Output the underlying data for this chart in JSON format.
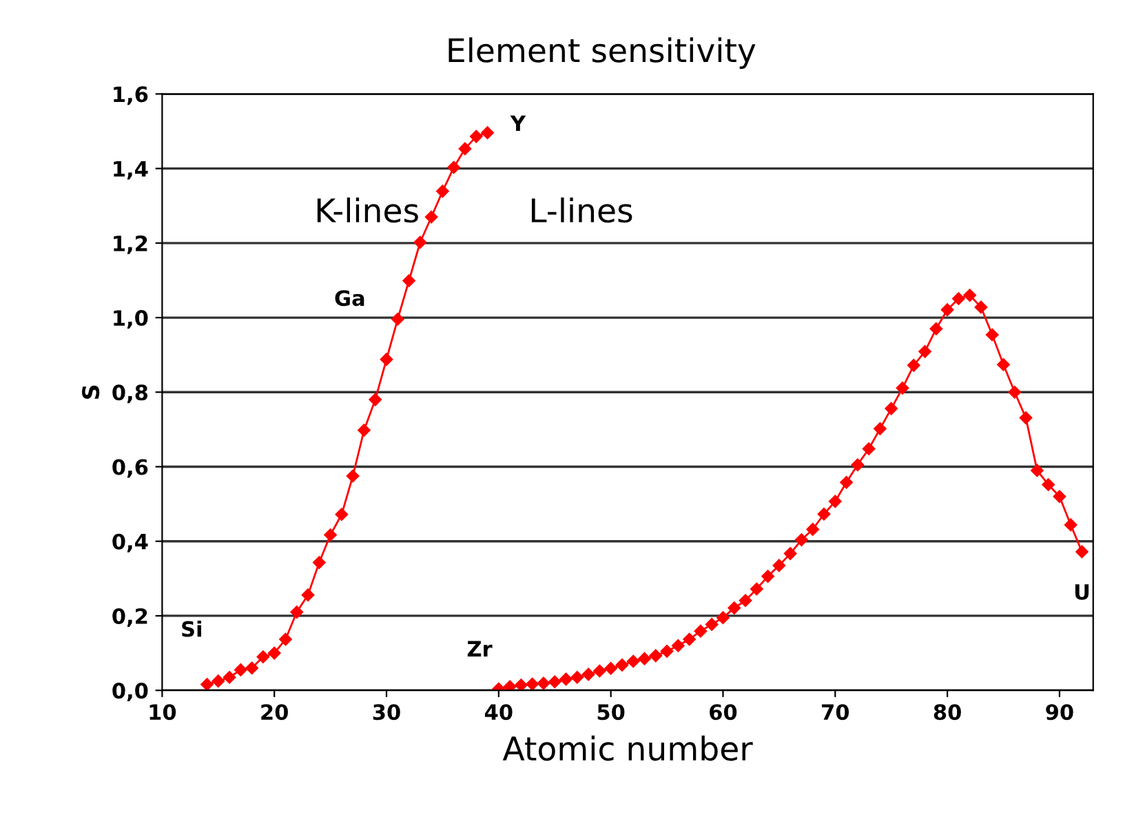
{
  "chart_data": {
    "type": "line",
    "title": "Element sensitivity",
    "xlabel": "Atomic number",
    "ylabel": "S",
    "xlim": [
      10,
      93
    ],
    "xticks": [
      10,
      20,
      30,
      40,
      50,
      60,
      70,
      80,
      90
    ],
    "ylim": [
      0,
      1.6
    ],
    "yticks": [
      {
        "value": 0,
        "label": "0,0"
      },
      {
        "value": 0.2,
        "label": "0,2"
      },
      {
        "value": 0.4,
        "label": "0,4"
      },
      {
        "value": 0.6,
        "label": "0,6"
      },
      {
        "value": 0.8,
        "label": "0,8"
      },
      {
        "value": 1.0,
        "label": "1,0"
      },
      {
        "value": 1.2,
        "label": "1,2"
      },
      {
        "value": 1.4,
        "label": "1,4"
      },
      {
        "value": 1.6,
        "label": "1,6"
      }
    ],
    "grid": "y",
    "marker": "diamond",
    "line_style": "solid",
    "legend": false,
    "series": [
      {
        "color": "#ff0000",
        "x": [
          14,
          15,
          16,
          17,
          18,
          19,
          20,
          21,
          22,
          23,
          24,
          25,
          26,
          27,
          28,
          29,
          30,
          31,
          32,
          33,
          34,
          35,
          36,
          37,
          38,
          39
        ],
        "values": [
          0.016,
          0.025,
          0.035,
          0.055,
          0.06,
          0.09,
          0.1,
          0.137,
          0.21,
          0.256,
          0.343,
          0.417,
          0.472,
          0.575,
          0.698,
          0.78,
          0.888,
          0.996,
          1.099,
          1.202,
          1.27,
          1.339,
          1.403,
          1.453,
          1.486,
          1.496
        ]
      },
      {
        "color": "#ff0000",
        "x": [
          40,
          41,
          42,
          43,
          44,
          45,
          46,
          47,
          48,
          49,
          50,
          51,
          52,
          53,
          54,
          55,
          56,
          57,
          58,
          59,
          60,
          61,
          62,
          63,
          64,
          65,
          66,
          67,
          68,
          69,
          70,
          71,
          72,
          73,
          74,
          75,
          76,
          77,
          78,
          79,
          80,
          81,
          82,
          83,
          84,
          85,
          86,
          87,
          88,
          89,
          90,
          91,
          92
        ],
        "values": [
          0.004,
          0.01,
          0.014,
          0.017,
          0.019,
          0.023,
          0.03,
          0.035,
          0.043,
          0.052,
          0.059,
          0.068,
          0.078,
          0.085,
          0.093,
          0.105,
          0.12,
          0.137,
          0.159,
          0.177,
          0.195,
          0.221,
          0.241,
          0.272,
          0.306,
          0.335,
          0.367,
          0.404,
          0.432,
          0.473,
          0.507,
          0.558,
          0.605,
          0.648,
          0.702,
          0.756,
          0.811,
          0.872,
          0.909,
          0.97,
          1.021,
          1.051,
          1.06,
          1.028,
          0.954,
          0.874,
          0.8,
          0.731,
          0.59,
          0.552,
          0.52,
          0.444,
          0.372
        ]
      }
    ],
    "annotations": [
      "K-lines",
      "L-lines",
      {
        "text": "Si",
        "x": 14,
        "y": 0.016
      },
      {
        "text": "Ga",
        "x": 31,
        "y": 0.996
      },
      {
        "text": "Y",
        "x": 39,
        "y": 1.496
      },
      {
        "text": "Zr",
        "x": 40,
        "y": 0.004
      },
      {
        "text": "U",
        "x": 92,
        "y": 0.372
      }
    ]
  }
}
